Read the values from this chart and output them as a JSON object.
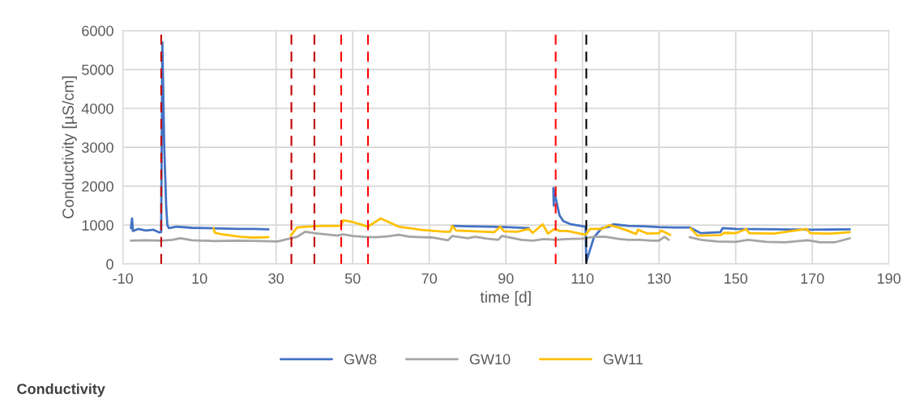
{
  "chart_data": {
    "type": "line",
    "title": "Conductivity",
    "xlabel": "time [d]",
    "ylabel": "Conductivity [µS/cm]",
    "xlim": [
      -10,
      190
    ],
    "xticks": [
      -10,
      10,
      30,
      50,
      70,
      90,
      110,
      130,
      150,
      170,
      190
    ],
    "ylim": [
      0,
      6000
    ],
    "yticks": [
      0,
      1000,
      2000,
      3000,
      4000,
      5000,
      6000
    ],
    "grid": true,
    "legend": "bottom",
    "marker": "none",
    "line_style": "solid",
    "series": [
      {
        "name": "GW8",
        "color": "#4472c4",
        "x": [
          -7.9,
          -7.6,
          -7.4,
          -6,
          -4,
          -2,
          -0.5,
          0,
          0.3,
          0.8,
          1.3,
          1.6,
          2,
          4,
          8,
          12,
          16,
          20,
          24,
          28,
          50,
          76,
          80,
          86,
          90,
          96,
          99,
          102.4,
          102.5,
          102.7,
          103,
          104,
          105,
          107,
          110.8,
          111,
          113,
          115,
          117,
          118,
          122,
          126,
          130,
          134,
          138,
          140.9,
          146,
          146.6,
          150,
          160,
          170,
          179.8
        ],
        "values": [
          920,
          1170,
          850,
          900,
          860,
          880,
          810,
          820,
          5700,
          3000,
          1500,
          1000,
          920,
          960,
          930,
          920,
          910,
          900,
          900,
          890,
          null,
          980,
          970,
          960,
          950,
          920,
          null,
          1950,
          1500,
          1900,
          1700,
          1250,
          1100,
          1020,
          960,
          60,
          690,
          920,
          960,
          1020,
          980,
          970,
          950,
          940,
          940,
          790,
          820,
          920,
          900,
          890,
          880,
          890
        ]
      },
      {
        "name": "GW10",
        "color": "#a5a5a5",
        "x": [
          -7.9,
          -4,
          0,
          3,
          5,
          8,
          14,
          20,
          26,
          30.4,
          33,
          35.5,
          37.6,
          40,
          43,
          46,
          47.5,
          50,
          53,
          56,
          59,
          62,
          65,
          68.3,
          71,
          74.9,
          76,
          80,
          82,
          85,
          88,
          89,
          92,
          94,
          97,
          100,
          103,
          106,
          110,
          113,
          116,
          119,
          122,
          125,
          128,
          130,
          131.4,
          132.5,
          135,
          138,
          141,
          145,
          150,
          153.2,
          158,
          163,
          168.8,
          172,
          176,
          179.8
        ],
        "values": [
          600,
          610,
          600,
          620,
          660,
          610,
          590,
          600,
          590,
          580,
          640,
          700,
          830,
          790,
          760,
          730,
          760,
          720,
          700,
          690,
          710,
          750,
          700,
          690,
          680,
          610,
          720,
          660,
          700,
          650,
          620,
          720,
          660,
          620,
          600,
          640,
          620,
          640,
          650,
          700,
          700,
          650,
          620,
          620,
          600,
          600,
          700,
          620,
          null,
          690,
          620,
          580,
          570,
          620,
          570,
          560,
          610,
          560,
          560,
          660
        ]
      },
      {
        "name": "GW11",
        "color": "#ffc000",
        "x": [
          13.7,
          14,
          16,
          20.7,
          24,
          28,
          31,
          33.8,
          35.5,
          38,
          42,
          47,
          47.5,
          50,
          54,
          57.3,
          62,
          68,
          74,
          75.5,
          76,
          77,
          82,
          87,
          88.5,
          89.5,
          93,
          96,
          97,
          99.6,
          101,
          102.7,
          104,
          106,
          110.8,
          112,
          115,
          117,
          119,
          122,
          124,
          124.5,
          127,
          130,
          130.5,
          132.9,
          135,
          138.2,
          140,
          146,
          147,
          150,
          152.8,
          153.5,
          160,
          168.5,
          169.5,
          175,
          179.8
        ],
        "values": [
          920,
          800,
          760,
          700,
          680,
          690,
          null,
          730,
          940,
          960,
          980,
          980,
          1125,
          1080,
          960,
          1170,
          960,
          875,
          830,
          830,
          980,
          860,
          840,
          820,
          960,
          840,
          830,
          900,
          800,
          1020,
          780,
          900,
          850,
          850,
          750,
          900,
          900,
          1000,
          950,
          850,
          770,
          880,
          780,
          790,
          860,
          750,
          null,
          920,
          730,
          740,
          800,
          790,
          900,
          790,
          780,
          900,
          790,
          780,
          820
        ]
      }
    ],
    "ref_lines": [
      {
        "axis": "x",
        "value": 0,
        "color": "#c00000",
        "line_style": "dashed"
      },
      {
        "axis": "x",
        "value": 34,
        "color": "#c00000",
        "line_style": "dashed"
      },
      {
        "axis": "x",
        "value": 40,
        "color": "#c00000",
        "line_style": "dashed"
      },
      {
        "axis": "x",
        "value": 47,
        "color": "#ff0000",
        "line_style": "dashed"
      },
      {
        "axis": "x",
        "value": 54,
        "color": "#ff0000",
        "line_style": "dashed"
      },
      {
        "axis": "x",
        "value": 103,
        "color": "#ff0000",
        "line_style": "dashed"
      },
      {
        "axis": "x",
        "value": 111,
        "color": "#000000",
        "line_style": "dashed"
      }
    ]
  }
}
